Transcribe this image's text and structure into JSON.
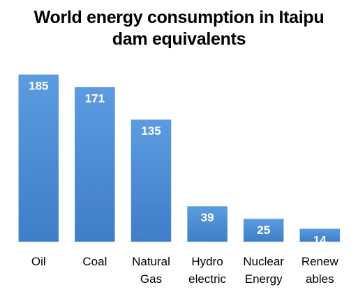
{
  "chart_data": {
    "type": "bar",
    "title": "World energy consumption in Itaipu dam equivalents",
    "categories": [
      "Oil",
      "Coal",
      "Natural Gas",
      "Hydro electric",
      "Nuclear Energy",
      "Renew ables"
    ],
    "values": [
      185,
      171,
      135,
      39,
      25,
      14
    ],
    "color": "#4f8ed6"
  }
}
